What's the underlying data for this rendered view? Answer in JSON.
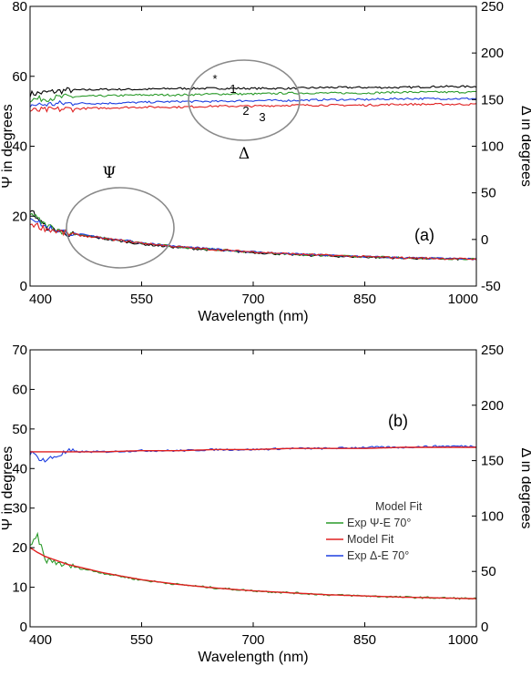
{
  "chart_data": [
    {
      "type": "line",
      "panel_label": "(a)",
      "xlabel": "Wavelength (nm)",
      "ylabel_left": "Ψ in degrees",
      "ylabel_right": "Δ in degrees",
      "xlim": [
        400,
        1000
      ],
      "ylim_left": [
        0,
        80
      ],
      "ylim_right": [
        -50,
        250
      ],
      "x_ticks": [
        "400",
        "550",
        "700",
        "850",
        "1000"
      ],
      "y_ticks_left": [
        "0",
        "20",
        "40",
        "60",
        "80"
      ],
      "y_ticks_right": [
        "-50",
        "0",
        "50",
        "100",
        "150",
        "200",
        "250"
      ],
      "grid": false,
      "annotations": {
        "psi_symbol": "Ψ",
        "delta_symbol": "Δ",
        "curve_labels": [
          "*",
          "1",
          "2",
          "3"
        ]
      },
      "series": [
        {
          "axis": "right",
          "color": "#000000",
          "x": [
            400,
            450,
            500,
            550,
            600,
            650,
            700,
            750,
            800,
            850,
            900,
            950,
            1000
          ],
          "values": [
            156,
            160,
            161,
            161,
            162,
            162,
            162,
            162,
            163,
            163,
            163,
            164,
            164
          ]
        },
        {
          "axis": "right",
          "color": "#2a9a2a",
          "x": [
            400,
            450,
            500,
            550,
            600,
            650,
            700,
            750,
            800,
            850,
            900,
            950,
            1000
          ],
          "values": [
            150,
            153,
            154,
            155,
            155,
            156,
            156,
            157,
            157,
            157,
            158,
            158,
            158
          ]
        },
        {
          "axis": "right",
          "color": "#1f3fe0",
          "x": [
            400,
            450,
            500,
            550,
            600,
            650,
            700,
            750,
            800,
            850,
            900,
            950,
            1000
          ],
          "values": [
            144,
            146,
            146,
            147,
            148,
            148,
            149,
            149,
            150,
            150,
            151,
            151,
            151
          ]
        },
        {
          "axis": "right",
          "color": "#e02020",
          "x": [
            400,
            450,
            500,
            550,
            600,
            650,
            700,
            750,
            800,
            850,
            900,
            950,
            1000
          ],
          "values": [
            138,
            140,
            141,
            142,
            142,
            143,
            143,
            144,
            144,
            144,
            145,
            145,
            145
          ]
        },
        {
          "axis": "left",
          "color": "#000000",
          "x": [
            400,
            420,
            450,
            500,
            550,
            600,
            650,
            700,
            750,
            800,
            850,
            900,
            950,
            1000
          ],
          "values": [
            22,
            17,
            15,
            13.5,
            12,
            11,
            10.2,
            9.6,
            9,
            8.6,
            8.3,
            8,
            7.8,
            7.6
          ]
        },
        {
          "axis": "left",
          "color": "#2a9a2a",
          "x": [
            400,
            420,
            450,
            500,
            550,
            600,
            650,
            700,
            750,
            800,
            850,
            900,
            950,
            1000
          ],
          "values": [
            21,
            17.5,
            15.2,
            13.7,
            12.3,
            11.2,
            10.4,
            9.7,
            9.1,
            8.7,
            8.4,
            8.1,
            7.9,
            7.7
          ]
        },
        {
          "axis": "left",
          "color": "#1f3fe0",
          "x": [
            400,
            420,
            450,
            500,
            550,
            600,
            650,
            700,
            750,
            800,
            850,
            900,
            950,
            1000
          ],
          "values": [
            20,
            17,
            15.2,
            13.8,
            12.4,
            11.3,
            10.5,
            9.8,
            9.2,
            8.8,
            8.4,
            8.1,
            7.9,
            7.7
          ]
        },
        {
          "axis": "left",
          "color": "#e02020",
          "x": [
            400,
            420,
            450,
            500,
            550,
            600,
            650,
            700,
            750,
            800,
            850,
            900,
            950,
            1000
          ],
          "values": [
            18,
            16.5,
            15,
            13.6,
            12.3,
            11.2,
            10.4,
            9.8,
            9.2,
            8.8,
            8.4,
            8.1,
            7.9,
            7.7
          ]
        }
      ]
    },
    {
      "type": "line",
      "panel_label": "(b)",
      "xlabel": "Wavelength (nm)",
      "ylabel_left": "Ψ in degrees",
      "ylabel_right": "Δ in degrees",
      "xlim": [
        400,
        1000
      ],
      "ylim_left": [
        0,
        70
      ],
      "ylim_right": [
        0,
        250
      ],
      "x_ticks": [
        "400",
        "550",
        "700",
        "850",
        "1000"
      ],
      "y_ticks_left": [
        "0",
        "10",
        "20",
        "30",
        "40",
        "50",
        "60",
        "70"
      ],
      "y_ticks_right": [
        "0",
        "50",
        "100",
        "150",
        "200",
        "250"
      ],
      "grid": false,
      "legend": {
        "placement": "center-right",
        "entries": [
          {
            "label": "Model Fit",
            "color": null
          },
          {
            "label": "Exp Ψ-E 70°",
            "color": "#2a9a2a"
          },
          {
            "label": "Model Fit",
            "color": "#e02020"
          },
          {
            "label": "Exp Δ-E 70°",
            "color": "#1f3fe0"
          }
        ]
      },
      "series": [
        {
          "name": "Exp Δ-E 70°",
          "axis": "right",
          "color": "#1f3fe0",
          "x": [
            400,
            420,
            450,
            500,
            550,
            600,
            650,
            700,
            750,
            800,
            850,
            900,
            950,
            1000
          ],
          "values": [
            157,
            150,
            158,
            158,
            159,
            159,
            160,
            160,
            161,
            161,
            162,
            162,
            163,
            163
          ]
        },
        {
          "name": "Model Fit",
          "axis": "right",
          "color": "#e02020",
          "x": [
            400,
            450,
            500,
            550,
            600,
            650,
            700,
            750,
            800,
            850,
            900,
            950,
            1000
          ],
          "values": [
            158,
            158,
            158,
            159,
            159,
            160,
            160,
            161,
            161,
            161,
            162,
            162,
            162
          ]
        },
        {
          "name": "Exp Ψ-E 70°",
          "axis": "left",
          "color": "#2a9a2a",
          "x": [
            400,
            410,
            420,
            450,
            500,
            550,
            600,
            650,
            700,
            750,
            800,
            850,
            900,
            950,
            1000
          ],
          "values": [
            20,
            23,
            17,
            15.5,
            13.5,
            11.8,
            10.7,
            9.8,
            9.1,
            8.6,
            8.1,
            7.8,
            7.5,
            7.3,
            7.1
          ]
        },
        {
          "name": "Model Fit",
          "axis": "left",
          "color": "#e02020",
          "x": [
            400,
            410,
            420,
            450,
            500,
            550,
            600,
            650,
            700,
            750,
            800,
            850,
            900,
            950,
            1000
          ],
          "values": [
            20,
            18.8,
            17.8,
            15.8,
            13.6,
            11.9,
            10.7,
            9.8,
            9.1,
            8.6,
            8.1,
            7.8,
            7.5,
            7.3,
            7.1
          ]
        }
      ]
    }
  ]
}
